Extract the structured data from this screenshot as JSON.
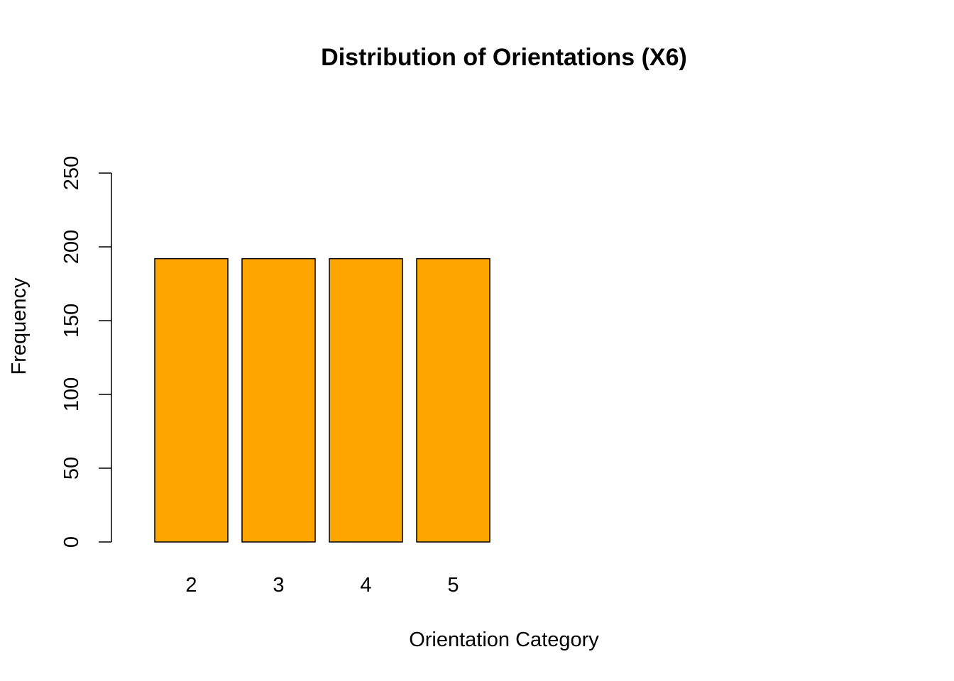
{
  "chart_data": {
    "type": "bar",
    "title": "Distribution of Orientations (X6)",
    "xlabel": "Orientation Category",
    "ylabel": "Frequency",
    "categories": [
      "2",
      "3",
      "4",
      "5"
    ],
    "values": [
      192,
      192,
      192,
      192
    ],
    "ylim": [
      0,
      250
    ],
    "yticks": [
      "0",
      "50",
      "100",
      "150",
      "200",
      "250"
    ],
    "bar_color": "#FFA500",
    "bar_border_color": "#000000",
    "grid": false,
    "legend": "none"
  }
}
